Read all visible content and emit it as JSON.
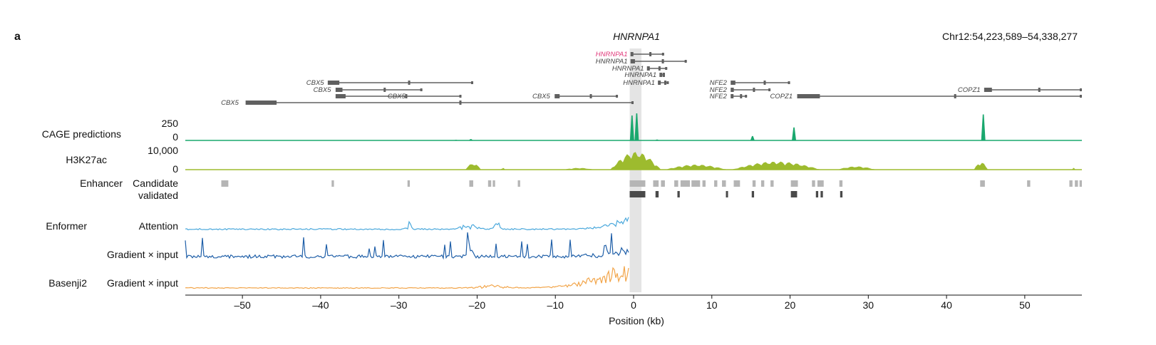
{
  "panel_label": "a",
  "title": "HNRNPA1",
  "coordinates": "Chr12:54,223,589–54,338,277",
  "colors": {
    "cage": "#1aa86e",
    "h3k27ac": "#9dbb2e",
    "candidate": "#b5b5b5",
    "validated": "#4a4a4a",
    "attention": "#4aa8dc",
    "gradient": "#1f5fa8",
    "basenji": "#f2a54a",
    "highlight": "#e4e4e4",
    "highlight_gene": "#e0387a",
    "gene": "#606060"
  },
  "genes": [
    {
      "name": "HNRNPA1",
      "highlight": true
    },
    {
      "name": "HNRNPA1"
    },
    {
      "name": "HNRNPA1"
    },
    {
      "name": "HNRNPA1"
    },
    {
      "name": "HNRNPA1"
    },
    {
      "name": "CBX5"
    },
    {
      "name": "CBX5"
    },
    {
      "name": "CBX5"
    },
    {
      "name": "CBX5"
    },
    {
      "name": "CBX5"
    },
    {
      "name": "NFE2"
    },
    {
      "name": "NFE2"
    },
    {
      "name": "NFE2"
    },
    {
      "name": "COPZ1"
    },
    {
      "name": "COPZ1"
    }
  ],
  "tracks": {
    "cage": {
      "label": "CAGE predictions",
      "ticks": [
        "250",
        "0"
      ]
    },
    "h3k27ac": {
      "label": "H3K27ac",
      "ticks": [
        "10,000",
        "0"
      ]
    },
    "enhancer": {
      "group": "Enhancer",
      "candidate": "Candidate",
      "validated": "validated"
    },
    "enformer": {
      "group": "Enformer",
      "attention": "Attention",
      "gradient": "Gradient × input"
    },
    "basenji": {
      "group": "Basenji2",
      "gradient": "Gradient × input"
    }
  },
  "chart_data": {
    "type": "line",
    "xlabel": "Position (kb)",
    "xlim": [
      -57.3,
      57.3
    ],
    "xticks": [
      -50,
      -40,
      -30,
      -20,
      -10,
      0,
      10,
      20,
      30,
      40,
      50
    ],
    "xtick_labels": [
      "–50",
      "–40",
      "–30",
      "–20",
      "–10",
      "0",
      "10",
      "20",
      "30",
      "40",
      "50"
    ],
    "highlight_region_kb": [
      -0.5,
      1.0
    ],
    "cage_predictions": {
      "ylim": [
        0,
        250
      ],
      "peaks": [
        {
          "x": -0.2,
          "y": 230
        },
        {
          "x": 0.4,
          "y": 250
        },
        {
          "x": 15.2,
          "y": 40
        },
        {
          "x": 20.5,
          "y": 120
        },
        {
          "x": 44.7,
          "y": 240
        },
        {
          "x": -20.8,
          "y": 12
        },
        {
          "x": -22.7,
          "y": 6
        },
        {
          "x": 3.0,
          "y": 8
        }
      ]
    },
    "h3k27ac": {
      "ylim": [
        0,
        10000
      ],
      "regions": [
        {
          "x": [
            -21.5,
            -19.5
          ],
          "y": 2600
        },
        {
          "x": [
            -17.0,
            -16.4
          ],
          "y": 700
        },
        {
          "x": [
            -9.0,
            -5.0
          ],
          "y": 700
        },
        {
          "x": [
            -3.0,
            3.5
          ],
          "y": 7000
        },
        {
          "x": [
            4.0,
            12.0
          ],
          "y": 2000
        },
        {
          "x": [
            12.5,
            24.0
          ],
          "y": 3200
        },
        {
          "x": [
            26.0,
            31.0
          ],
          "y": 1300
        },
        {
          "x": [
            43.5,
            45.3
          ],
          "y": 3000
        },
        {
          "x": [
            56.0,
            56.5
          ],
          "y": 700
        }
      ]
    },
    "enhancer_candidates": [
      [
        -52.7,
        -51.8
      ],
      [
        -38.6,
        -38.3
      ],
      [
        -28.9,
        -28.6
      ],
      [
        -21.0,
        -20.5
      ],
      [
        -18.6,
        -18.2
      ],
      [
        -18.0,
        -17.7
      ],
      [
        -14.8,
        -14.5
      ],
      [
        -0.5,
        1.5
      ],
      [
        2.5,
        3.2
      ],
      [
        3.5,
        4.0
      ],
      [
        5.2,
        5.7
      ],
      [
        6.0,
        7.2
      ],
      [
        7.4,
        8.5
      ],
      [
        8.8,
        9.2
      ],
      [
        10.3,
        10.7
      ],
      [
        11.3,
        11.8
      ],
      [
        12.8,
        13.6
      ],
      [
        15.2,
        15.6
      ],
      [
        16.3,
        16.7
      ],
      [
        17.5,
        17.9
      ],
      [
        20.1,
        21.0
      ],
      [
        22.8,
        23.2
      ],
      [
        23.5,
        24.3
      ],
      [
        26.3,
        26.7
      ],
      [
        44.3,
        44.9
      ],
      [
        50.3,
        50.7
      ],
      [
        55.7,
        56.1
      ],
      [
        56.4,
        56.8
      ],
      [
        57.0,
        57.3
      ]
    ],
    "enhancer_validated": [
      [
        -0.5,
        1.5
      ],
      [
        2.8,
        3.2
      ],
      [
        5.6,
        5.9
      ],
      [
        11.8,
        12.0
      ],
      [
        15.1,
        15.4
      ],
      [
        20.1,
        20.9
      ],
      [
        23.3,
        23.6
      ],
      [
        23.9,
        24.2
      ],
      [
        26.4,
        26.7
      ]
    ],
    "series": [
      {
        "name": "Attention",
        "ylim": [
          0,
          1
        ]
      },
      {
        "name": "Gradient × input",
        "ylim": [
          0,
          1
        ]
      },
      {
        "name": "Gradient × input",
        "ylim": [
          0,
          1
        ]
      }
    ]
  }
}
